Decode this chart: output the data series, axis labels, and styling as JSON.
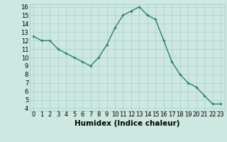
{
  "x": [
    0,
    1,
    2,
    3,
    4,
    5,
    6,
    7,
    8,
    9,
    10,
    11,
    12,
    13,
    14,
    15,
    16,
    17,
    18,
    19,
    20,
    21,
    22,
    23
  ],
  "y": [
    12.5,
    12.0,
    12.0,
    11.0,
    10.5,
    10.0,
    9.5,
    9.0,
    10.0,
    11.5,
    13.5,
    15.0,
    15.5,
    16.0,
    15.0,
    14.5,
    12.0,
    9.5,
    8.0,
    7.0,
    6.5,
    5.5,
    4.5,
    4.5
  ],
  "line_color": "#2d7d6e",
  "marker": "+",
  "bg_color": "#cce8e0",
  "grid_color": "#aacfca",
  "xlabel": "Humidex (Indice chaleur)",
  "ylim_min": 4,
  "ylim_max": 16,
  "xlim_min": 0,
  "xlim_max": 23,
  "yticks": [
    4,
    5,
    6,
    7,
    8,
    9,
    10,
    11,
    12,
    13,
    14,
    15,
    16
  ],
  "xticks": [
    0,
    1,
    2,
    3,
    4,
    5,
    6,
    7,
    8,
    9,
    10,
    11,
    12,
    13,
    14,
    15,
    16,
    17,
    18,
    19,
    20,
    21,
    22,
    23
  ],
  "tick_fontsize": 6,
  "label_fontsize": 7.5,
  "linewidth": 1.0,
  "markersize": 3.5,
  "markeredgewidth": 0.9
}
